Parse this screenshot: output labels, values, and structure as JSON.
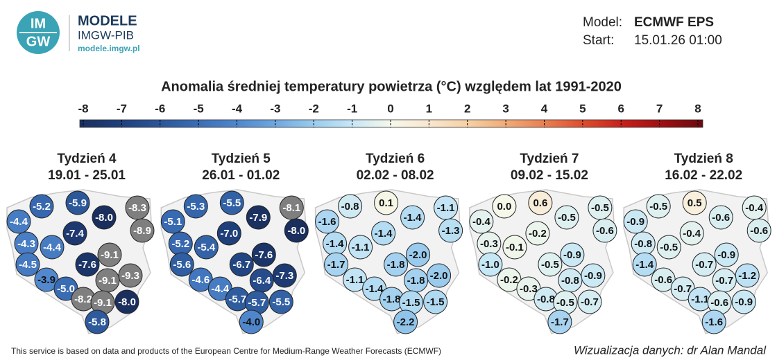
{
  "header": {
    "logo_top": "IM",
    "logo_bottom": "GW",
    "brand": "MODELE",
    "org": "IMGW-PIB",
    "url": "modele.imgw.pl",
    "model_label": "Model:",
    "model": "ECMWF EPS",
    "start_label": "Start:",
    "start": "15.01.26 01:00"
  },
  "title": "Anomalia średniej temperatury powietrza (°C) względem lat 1991-2020",
  "colorbar": {
    "ticks": [
      -8,
      -7,
      -6,
      -5,
      -4,
      -3,
      -2,
      -1,
      0,
      1,
      2,
      3,
      4,
      5,
      6,
      7,
      8
    ],
    "colors": [
      "#1a2f5e",
      "#1f3f7a",
      "#2a5596",
      "#3a6cb4",
      "#4f86cc",
      "#6ea6de",
      "#9acbed",
      "#c6e7f6",
      "#f6f8ea",
      "#f9e6cd",
      "#f6cfa3",
      "#f0a875",
      "#e87c4f",
      "#db4a2c",
      "#c41e1a",
      "#9c0f12",
      "#6a0a0e"
    ],
    "out_of_range_color": "#7f7f7f"
  },
  "panels": [
    {
      "title": "Tydzień 4",
      "dates": "19.01 - 25.01",
      "values": [
        -5.2,
        -5.9,
        -8.3,
        -4.4,
        -8,
        -8.9,
        -7.4,
        -4.3,
        -4.4,
        -9.1,
        -4.5,
        -7.6,
        -9.3,
        -3.9,
        -9.1,
        -5,
        -8.2,
        -9.1,
        -8,
        -5.8
      ],
      "value_labels": [
        "-5.2",
        "-5.9",
        "-8.3",
        "-4.4",
        "-8.0",
        "-8.9",
        "-7.4",
        "-4.3",
        "-4.4",
        "-9.1",
        "-4.5",
        "-7.6",
        "-9.3",
        "-3.9",
        "-9.1",
        "-5.0",
        "-8.2",
        "-9.1",
        "-8.0",
        "-5.8"
      ]
    },
    {
      "title": "Tydzień 5",
      "dates": "26.01 - 01.02",
      "values": [
        -5.3,
        -5.5,
        -8.1,
        -5.1,
        -7.9,
        -8,
        -7,
        -5.2,
        -5.4,
        -7.6,
        -5.6,
        -6.7,
        -7.3,
        -4.6,
        -6.4,
        -4.4,
        -5.7,
        -5.7,
        -5.5,
        -4
      ],
      "value_labels": [
        "-5.3",
        "-5.5",
        "-8.1",
        "-5.1",
        "-7.9",
        "-8.0",
        "-7.0",
        "-5.2",
        "-5.4",
        "-7.6",
        "-5.6",
        "-6.7",
        "-7.3",
        "-4.6",
        "-6.4",
        "-4.4",
        "-5.7",
        "-5.7",
        "-5.5",
        "-4.0"
      ]
    },
    {
      "title": "Tydzień 6",
      "dates": "02.02 - 08.02",
      "values": [
        -0.8,
        0.1,
        -1.1,
        -1.6,
        -1.4,
        -1.3,
        -1.4,
        -1.4,
        -1.1,
        -2,
        -1.7,
        -1.8,
        -2,
        -1.1,
        -1.8,
        -1.4,
        -1.8,
        -1.5,
        -1.5,
        -2.2
      ],
      "value_labels": [
        "-0.8",
        "0.1",
        "-1.1",
        "-1.6",
        "-1.4",
        "-1.3",
        "-1.4",
        "-1.4",
        "-1.1",
        "-2.0",
        "-1.7",
        "-1.8",
        "-2.0",
        "-1.1",
        "-1.8",
        "-1.4",
        "-1.8",
        "-1.5",
        "-1.5",
        "-2.2"
      ]
    },
    {
      "title": "Tydzień 7",
      "dates": "09.02 - 15.02",
      "values": [
        0,
        0.6,
        -0.5,
        -0.4,
        -0.5,
        -0.6,
        -0.2,
        -0.3,
        -0.1,
        -0.9,
        -1,
        -0.5,
        -0.9,
        -0.2,
        -0.8,
        -0.3,
        -0.8,
        -0.5,
        -0.7,
        -1.7
      ],
      "value_labels": [
        "0.0",
        "0.6",
        "-0.5",
        "-0.4",
        "-0.5",
        "-0.6",
        "-0.2",
        "-0.3",
        "-0.1",
        "-0.9",
        "-1.0",
        "-0.5",
        "-0.9",
        "-0.2",
        "-0.8",
        "-0.3",
        "-0.8",
        "-0.5",
        "-0.7",
        "-1.7"
      ]
    },
    {
      "title": "Tydzień 8",
      "dates": "16.02 - 22.02",
      "values": [
        -0.5,
        0.5,
        -0.4,
        -0.9,
        -0.6,
        -0.6,
        -0.4,
        -0.8,
        -0.5,
        -0.9,
        -1.4,
        -0.7,
        -1.2,
        -0.6,
        -0.7,
        -0.7,
        -1.1,
        -0.6,
        -0.9,
        -1.6
      ],
      "value_labels": [
        "-0.5",
        "0.5",
        "-0.4",
        "-0.9",
        "-0.6",
        "-0.6",
        "-0.4",
        "-0.8",
        "-0.5",
        "-0.9",
        "-1.4",
        "-0.7",
        "-1.2",
        "-0.6",
        "-0.7",
        "-0.7",
        "-1.1",
        "-0.6",
        "-0.9",
        "-1.6"
      ]
    }
  ],
  "footer": {
    "source": "This service is based on data and products of the European Centre for Medium-Range Weather Forecasts (ECMWF)",
    "credit": "Wizualizacja danych: dr Alan Mandal"
  }
}
